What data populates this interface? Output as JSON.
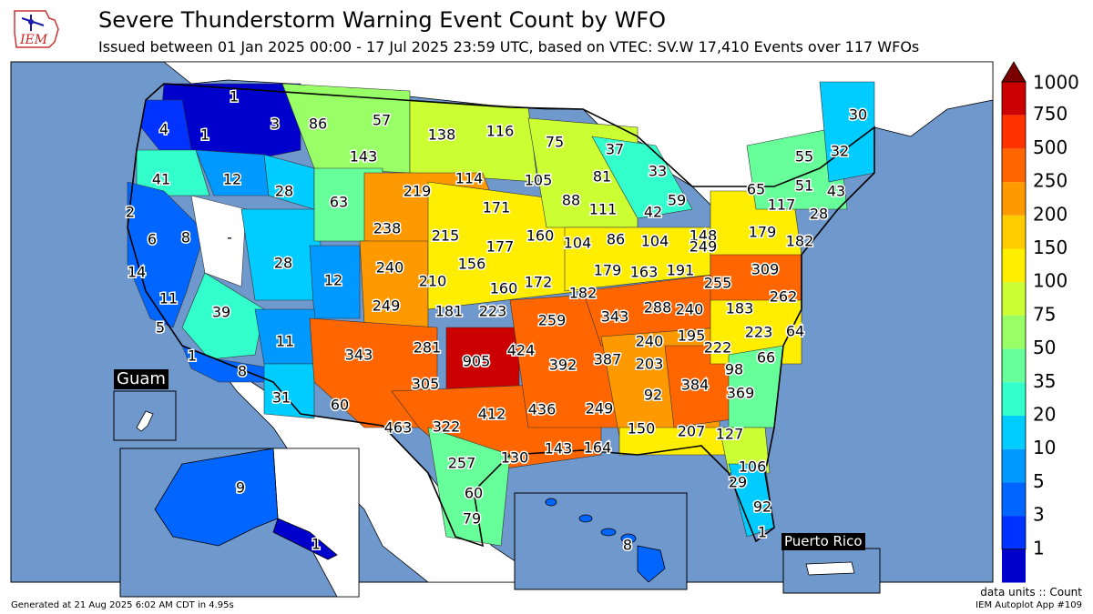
{
  "header": {
    "title": "Severe Thunderstorm Warning Event Count by WFO",
    "subtitle": "Issued between 01 Jan 2025 00:00 - 17 Jul 2025 23:59 UTC, based on VTEC: SV.W   17,410 Events over 117 WFOs",
    "logo_text": "IEM"
  },
  "footer": {
    "generated": "Generated at 21 Aug 2025 6:02 AM CDT in 4.95s",
    "units": "data units :: Count",
    "app": "IEM Autoplot App #109"
  },
  "insets": {
    "guam": "Guam",
    "puerto_rico": "Puerto Rico"
  },
  "colorbar": {
    "levels": [
      "1000",
      "750",
      "500",
      "250",
      "200",
      "150",
      "100",
      "75",
      "50",
      "35",
      "20",
      "10",
      "5",
      "3",
      "1"
    ],
    "colors": [
      "#cc0000",
      "#ff3300",
      "#ff6600",
      "#ff9900",
      "#ffcc00",
      "#ffee00",
      "#ccff33",
      "#99ff66",
      "#66ff99",
      "#33ffcc",
      "#00ccff",
      "#0099ff",
      "#0066ff",
      "#0033ff",
      "#0000cc"
    ],
    "over_color": "#7a0000"
  },
  "colors": {
    "ocean": "#6f98cc",
    "land_outside": "#ffffff"
  },
  "wfo_counts": [
    {
      "value": "1",
      "color": "#0000cc"
    },
    {
      "value": "3",
      "color": "#0000cc"
    },
    {
      "value": "4",
      "color": "#0033ff"
    },
    {
      "value": "1",
      "color": "#0000cc"
    },
    {
      "value": "86",
      "color": "#99ff66"
    },
    {
      "value": "57",
      "color": "#66ff99"
    },
    {
      "value": "138",
      "color": "#ccff33"
    },
    {
      "value": "116",
      "color": "#ccff33"
    },
    {
      "value": "75",
      "color": "#99ff66"
    },
    {
      "value": "37",
      "color": "#33ffcc"
    },
    {
      "value": "30",
      "color": "#00ccff"
    },
    {
      "value": "32",
      "color": "#00ccff"
    },
    {
      "value": "41",
      "color": "#33ffcc"
    },
    {
      "value": "12",
      "color": "#0099ff"
    },
    {
      "value": "28",
      "color": "#00ccff"
    },
    {
      "value": "143",
      "color": "#ccff33"
    },
    {
      "value": "63",
      "color": "#66ff99"
    },
    {
      "value": "219",
      "color": "#ff9900"
    },
    {
      "value": "114",
      "color": "#ccff33"
    },
    {
      "value": "105",
      "color": "#ccff33"
    },
    {
      "value": "81",
      "color": "#99ff66"
    },
    {
      "value": "33",
      "color": "#00ccff"
    },
    {
      "value": "55",
      "color": "#66ff99"
    },
    {
      "value": "51",
      "color": "#66ff99"
    },
    {
      "value": "43",
      "color": "#33ffcc"
    },
    {
      "value": "65",
      "color": "#66ff99"
    },
    {
      "value": "2",
      "color": "#0000cc"
    },
    {
      "value": "8",
      "color": "#0066ff"
    },
    {
      "value": "-",
      "color": "#ffffff"
    },
    {
      "value": "238",
      "color": "#ff9900"
    },
    {
      "value": "171",
      "color": "#ffee00"
    },
    {
      "value": "88",
      "color": "#99ff66"
    },
    {
      "value": "111",
      "color": "#ccff33"
    },
    {
      "value": "42",
      "color": "#33ffcc"
    },
    {
      "value": "59",
      "color": "#66ff99"
    },
    {
      "value": "117",
      "color": "#ccff33"
    },
    {
      "value": "28",
      "color": "#00ccff"
    },
    {
      "value": "6",
      "color": "#0066ff"
    },
    {
      "value": "215",
      "color": "#ff9900"
    },
    {
      "value": "177",
      "color": "#ffee00"
    },
    {
      "value": "160",
      "color": "#ffee00"
    },
    {
      "value": "104",
      "color": "#ccff33"
    },
    {
      "value": "86",
      "color": "#99ff66"
    },
    {
      "value": "104",
      "color": "#ccff33"
    },
    {
      "value": "148",
      "color": "#ccff33"
    },
    {
      "value": "179",
      "color": "#ffee00"
    },
    {
      "value": "182",
      "color": "#ffee00"
    },
    {
      "value": "14",
      "color": "#0099ff"
    },
    {
      "value": "28",
      "color": "#00ccff"
    },
    {
      "value": "240",
      "color": "#ff9900"
    },
    {
      "value": "156",
      "color": "#ffee00"
    },
    {
      "value": "249",
      "color": "#ff9900"
    },
    {
      "value": "309",
      "color": "#ff6600"
    },
    {
      "value": "11",
      "color": "#0099ff"
    },
    {
      "value": "12",
      "color": "#0099ff"
    },
    {
      "value": "210",
      "color": "#ff9900"
    },
    {
      "value": "160",
      "color": "#ffee00"
    },
    {
      "value": "172",
      "color": "#ffee00"
    },
    {
      "value": "179",
      "color": "#ffee00"
    },
    {
      "value": "163",
      "color": "#ffee00"
    },
    {
      "value": "191",
      "color": "#ffee00"
    },
    {
      "value": "255",
      "color": "#ff6600"
    },
    {
      "value": "262",
      "color": "#ff6600"
    },
    {
      "value": "39",
      "color": "#33ffcc"
    },
    {
      "value": "249",
      "color": "#ff9900"
    },
    {
      "value": "181",
      "color": "#ffee00"
    },
    {
      "value": "223",
      "color": "#ff9900"
    },
    {
      "value": "182",
      "color": "#ffee00"
    },
    {
      "value": "343",
      "color": "#ff6600"
    },
    {
      "value": "288",
      "color": "#ff6600"
    },
    {
      "value": "240",
      "color": "#ff9900"
    },
    {
      "value": "183",
      "color": "#ffee00"
    },
    {
      "value": "5",
      "color": "#0066ff"
    },
    {
      "value": "11",
      "color": "#0099ff"
    },
    {
      "value": "259",
      "color": "#ff6600"
    },
    {
      "value": "195",
      "color": "#ffee00"
    },
    {
      "value": "223",
      "color": "#ff9900"
    },
    {
      "value": "64",
      "color": "#66ff99"
    },
    {
      "value": "1",
      "color": "#0000cc"
    },
    {
      "value": "343",
      "color": "#ff6600"
    },
    {
      "value": "281",
      "color": "#ff6600"
    },
    {
      "value": "905",
      "color": "#cc0000"
    },
    {
      "value": "424",
      "color": "#ff6600"
    },
    {
      "value": "392",
      "color": "#ff6600"
    },
    {
      "value": "387",
      "color": "#ff6600"
    },
    {
      "value": "240",
      "color": "#ff9900"
    },
    {
      "value": "222",
      "color": "#ff9900"
    },
    {
      "value": "66",
      "color": "#66ff99"
    },
    {
      "value": "8",
      "color": "#0066ff"
    },
    {
      "value": "305",
      "color": "#ff6600"
    },
    {
      "value": "203",
      "color": "#ff9900"
    },
    {
      "value": "384",
      "color": "#ff6600"
    },
    {
      "value": "98",
      "color": "#99ff66"
    },
    {
      "value": "31",
      "color": "#00ccff"
    },
    {
      "value": "60",
      "color": "#66ff99"
    },
    {
      "value": "369",
      "color": "#ff6600"
    },
    {
      "value": "436",
      "color": "#ff6600"
    },
    {
      "value": "249",
      "color": "#ff9900"
    },
    {
      "value": "92",
      "color": "#99ff66"
    },
    {
      "value": "463",
      "color": "#ff6600"
    },
    {
      "value": "322",
      "color": "#ff6600"
    },
    {
      "value": "412",
      "color": "#ff6600"
    },
    {
      "value": "150",
      "color": "#ffee00"
    },
    {
      "value": "207",
      "color": "#ff9900"
    },
    {
      "value": "127",
      "color": "#ccff33"
    },
    {
      "value": "130",
      "color": "#ccff33"
    },
    {
      "value": "143",
      "color": "#ccff33"
    },
    {
      "value": "164",
      "color": "#ffee00"
    },
    {
      "value": "257",
      "color": "#ff6600"
    },
    {
      "value": "106",
      "color": "#ccff33"
    },
    {
      "value": "29",
      "color": "#00ccff"
    },
    {
      "value": "60",
      "color": "#66ff99"
    },
    {
      "value": "92",
      "color": "#99ff66"
    },
    {
      "value": "79",
      "color": "#99ff66"
    },
    {
      "value": "1",
      "color": "#0000cc"
    },
    {
      "value": "9",
      "color": "#0066ff"
    },
    {
      "value": "1",
      "color": "#0000cc"
    },
    {
      "value": "8",
      "color": "#0066ff"
    }
  ]
}
